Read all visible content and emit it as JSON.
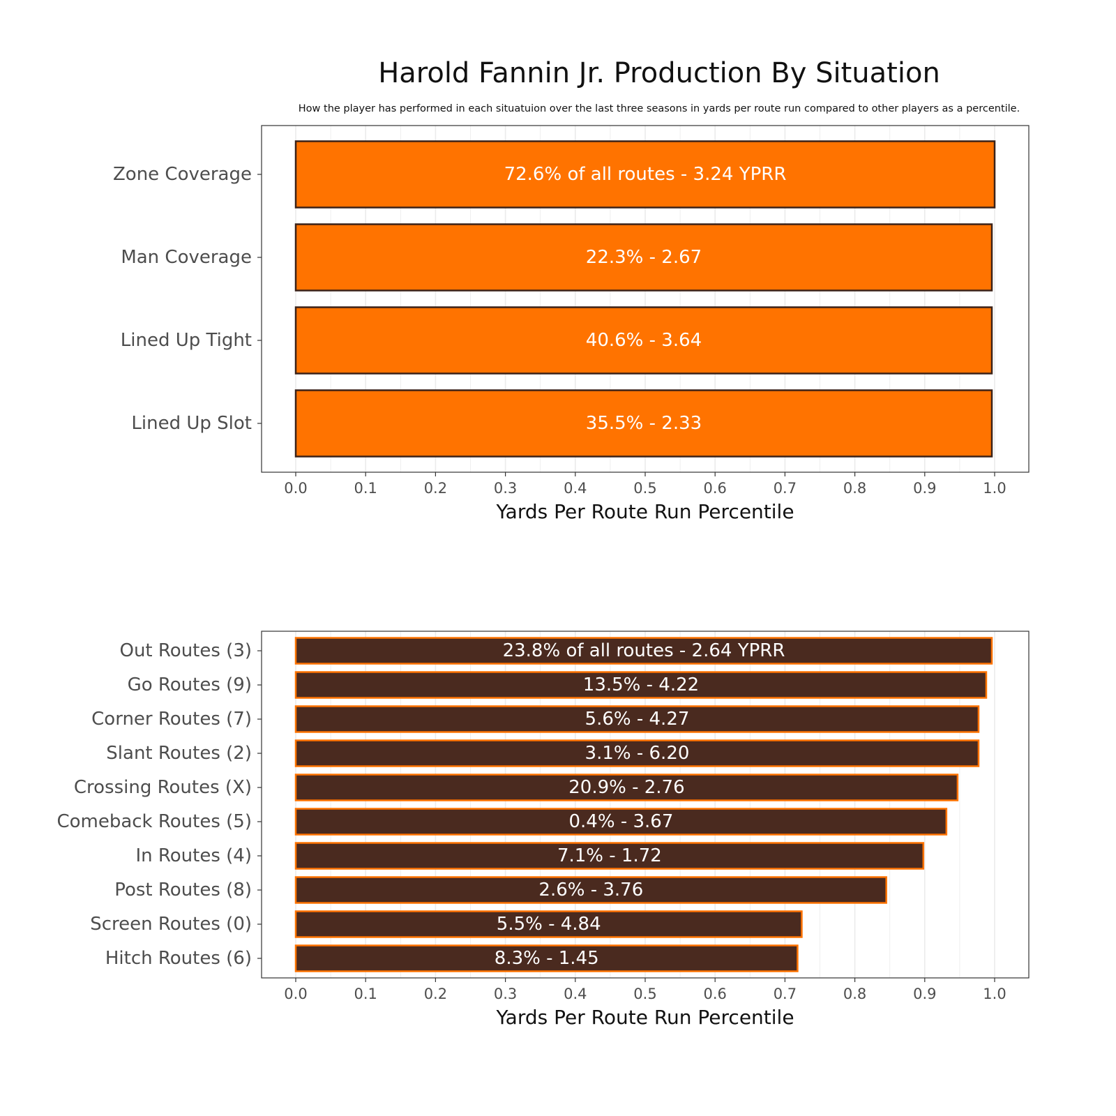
{
  "title": "Harold Fannin Jr. Production By Situation",
  "subtitle": "How the player has performed in each situatuion over the last three seasons in yards per route run compared to other players as a percentile.",
  "chart_data": [
    {
      "type": "bar",
      "orientation": "horizontal",
      "categories": [
        "Zone Coverage",
        "Man Coverage",
        "Lined Up Tight",
        "Lined Up Slot"
      ],
      "values": [
        1.0,
        0.996,
        0.996,
        0.996
      ],
      "labels": [
        "72.6% of all routes - 3.24 YPRR",
        "22.3% - 2.67",
        "40.6% - 3.64",
        "35.5% - 2.33"
      ],
      "xlabel": "Yards Per Route Run Percentile",
      "ylabel": "",
      "xlim": [
        0,
        1
      ],
      "xticks": [
        "0.0",
        "0.1",
        "0.2",
        "0.3",
        "0.4",
        "0.5",
        "0.6",
        "0.7",
        "0.8",
        "0.9",
        "1.0"
      ],
      "grid": true,
      "colors": {
        "fill": "#FF7300",
        "stroke": "#3B2218",
        "label": "#FFFFFF"
      }
    },
    {
      "type": "bar",
      "orientation": "horizontal",
      "categories": [
        "Out Routes (3)",
        "Go Routes (9)",
        "Corner Routes (7)",
        "Slant Routes (2)",
        "Crossing Routes (X)",
        "Comeback Routes (5)",
        "In Routes (4)",
        "Post Routes (8)",
        "Screen Routes (0)",
        "Hitch Routes (6)"
      ],
      "values": [
        0.996,
        0.988,
        0.977,
        0.977,
        0.947,
        0.931,
        0.898,
        0.845,
        0.724,
        0.718
      ],
      "labels": [
        "23.8% of all routes - 2.64 YPRR",
        "13.5% - 4.22",
        "5.6% - 4.27",
        "3.1% - 6.20",
        "20.9% - 2.76",
        "0.4% - 3.67",
        "7.1% - 1.72",
        "2.6% - 3.76",
        "5.5% - 4.84",
        "8.3% - 1.45"
      ],
      "xlabel": "Yards Per Route Run Percentile",
      "ylabel": "",
      "xlim": [
        0,
        1
      ],
      "xticks": [
        "0.0",
        "0.1",
        "0.2",
        "0.3",
        "0.4",
        "0.5",
        "0.6",
        "0.7",
        "0.8",
        "0.9",
        "1.0"
      ],
      "grid": true,
      "colors": {
        "fill": "#4A2A1F",
        "stroke": "#FF7300",
        "label": "#FFFFFF"
      }
    }
  ]
}
